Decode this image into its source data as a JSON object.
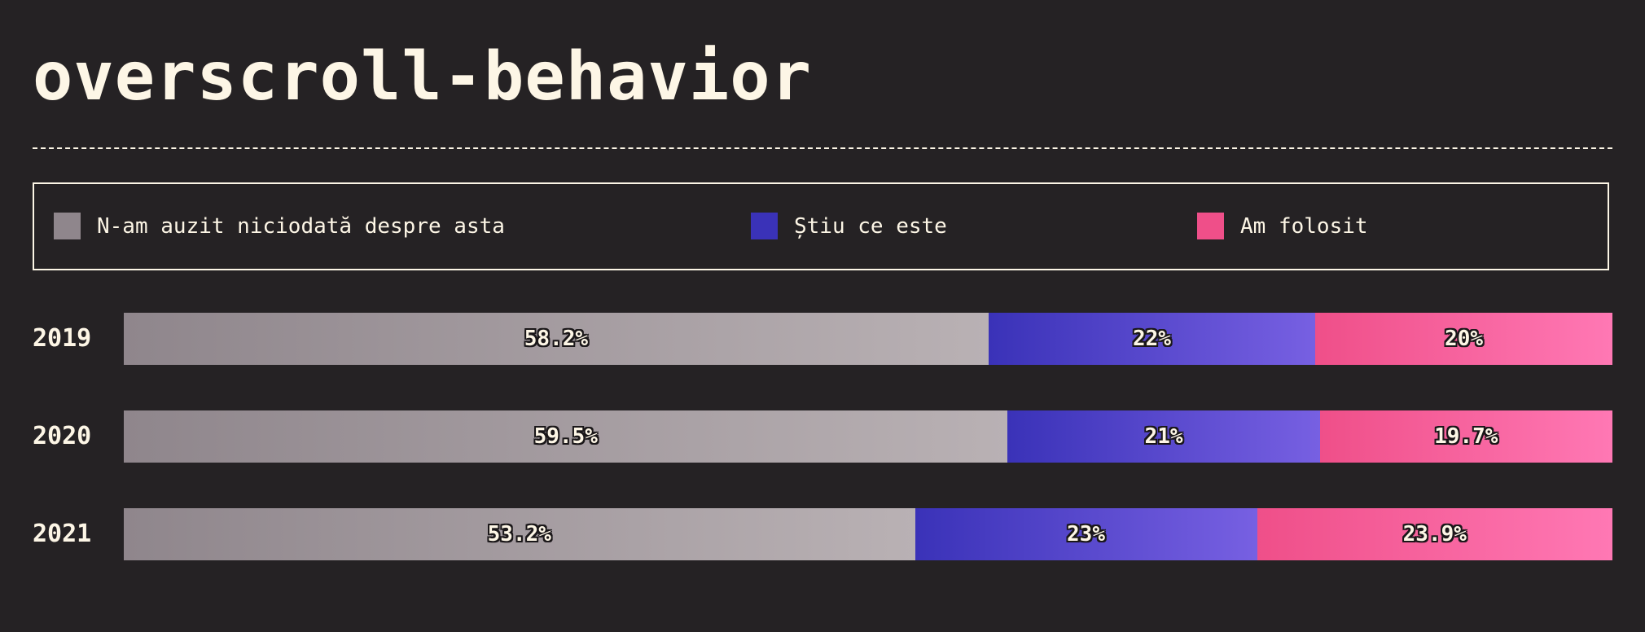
{
  "page": {
    "title": "overscroll-behavior"
  },
  "legend": [
    {
      "label": "N-am auzit niciodată despre asta",
      "color": "#8f868c"
    },
    {
      "label": "Știu ce este",
      "color": "#3a32b8"
    },
    {
      "label": "Am folosit",
      "color": "#ef4f89"
    }
  ],
  "chart_data": {
    "type": "bar",
    "orientation": "horizontal",
    "stacked": true,
    "categories": [
      "2019",
      "2020",
      "2021"
    ],
    "series": [
      {
        "name": "N-am auzit niciodată despre asta",
        "values": [
          58.2,
          59.5,
          53.2
        ],
        "labels": [
          "58.2%",
          "59.5%",
          "53.2%"
        ],
        "color": "#8f868c"
      },
      {
        "name": "Știu ce este",
        "values": [
          22,
          21,
          23
        ],
        "labels": [
          "22%",
          "21%",
          "23%"
        ],
        "color": "#3a32b8"
      },
      {
        "name": "Am folosit",
        "values": [
          20,
          19.7,
          23.9
        ],
        "labels": [
          "20%",
          "19.7%",
          "23.9%"
        ],
        "color": "#ef4f89"
      }
    ],
    "legend": "top"
  }
}
